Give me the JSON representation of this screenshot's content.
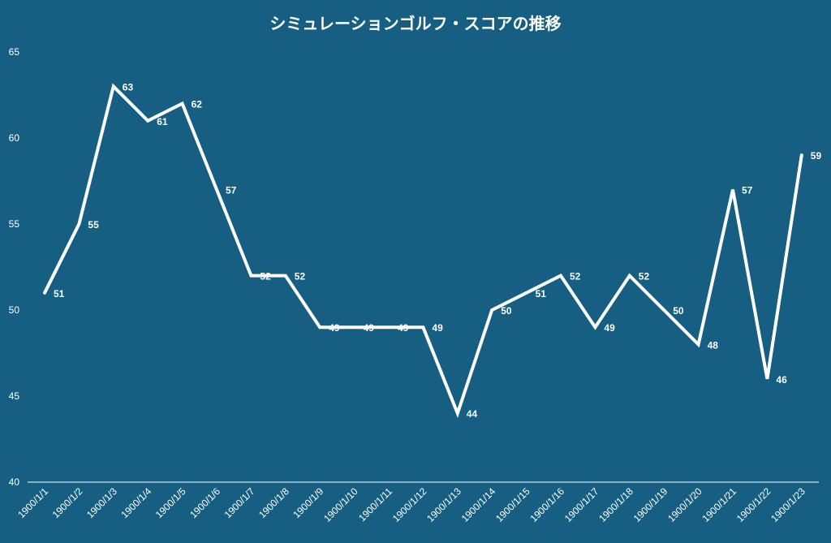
{
  "chart_data": {
    "type": "line",
    "title": "シミュレーションゴルフ・スコアの推移",
    "xlabel": "",
    "ylabel": "",
    "ylim": [
      40,
      65
    ],
    "yticks": [
      40,
      45,
      50,
      55,
      60,
      65
    ],
    "grid": false,
    "legend": "none",
    "categories": [
      "1900/1/1",
      "1900/1/2",
      "1900/1/3",
      "1900/1/4",
      "1900/1/5",
      "1900/1/6",
      "1900/1/7",
      "1900/1/8",
      "1900/1/9",
      "1900/1/10",
      "1900/1/11",
      "1900/1/12",
      "1900/1/13",
      "1900/1/14",
      "1900/1/15",
      "1900/1/16",
      "1900/1/17",
      "1900/1/18",
      "1900/1/19",
      "1900/1/20",
      "1900/1/21",
      "1900/1/22",
      "1900/1/23"
    ],
    "series": [
      {
        "values": [
          51,
          55,
          63,
          61,
          62,
          57,
          52,
          52,
          49,
          49,
          49,
          49,
          44,
          50,
          51,
          52,
          49,
          52,
          50,
          48,
          57,
          46,
          59
        ]
      }
    ],
    "colors": {
      "background": "#165f82",
      "line": "#ffffff",
      "text": "#ffffff"
    }
  }
}
